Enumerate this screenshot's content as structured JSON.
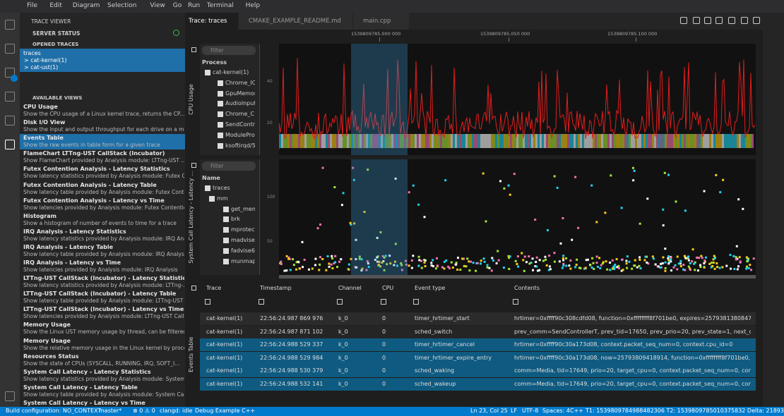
{
  "menu": [
    "File",
    "Edit",
    "Diagram",
    "Selection",
    "View",
    "Go",
    "Run",
    "Terminal",
    "Help"
  ],
  "sidebar": {
    "title": "TRACE VIEWER",
    "server_status": "SERVER STATUS",
    "opened_traces": "OPENED TRACES",
    "traces": [
      "traces",
      "> cat-kernel(1)",
      "> cat-ust(1)"
    ],
    "available_views": "AVAILABLE VIEWS",
    "views": [
      {
        "name": "CPU Usage",
        "desc": "Show the CPU usage of a Linux kernel trace, returns the CP..."
      },
      {
        "name": "Disk I/O View",
        "desc": "Show the input and output throughput for each drive on a m..."
      },
      {
        "name": "Events Table",
        "desc": "Show the raw events in table form for a given trace"
      },
      {
        "name": "FlameChart LTTng-UST CallStack (Incubator)",
        "desc": "Show FlameChart provided by Analysis module: LTTng-UST ..."
      },
      {
        "name": "Futex Contention Analysis - Latency Statistics",
        "desc": "Show latency statistics provided by Analysis module: Futex C..."
      },
      {
        "name": "Futex Contention Analysis - Latency Table",
        "desc": "Show latency table provided by Analysis module: Futex Conte..."
      },
      {
        "name": "Futex Contention Analysis - Latency vs Time",
        "desc": "Show latencies provided by Analysis module: Futex Contentio..."
      },
      {
        "name": "Histogram",
        "desc": "Show a histogram of number of events to time for a trace"
      },
      {
        "name": "IRQ Analysis - Latency Statistics",
        "desc": "Show latency statistics provided by Analysis module: IRQ Ana..."
      },
      {
        "name": "IRQ Analysis - Latency Table",
        "desc": "Show latency table provided by Analysis module: IRQ Analysis"
      },
      {
        "name": "IRQ Analysis - Latency vs Time",
        "desc": "Show latencies provided by Analysis module: IRQ Analysis"
      },
      {
        "name": "LTTng-UST CallStack (Incubator) - Latency Statistics",
        "desc": "Show latency statistics provided by Analysis module: LTTng-..."
      },
      {
        "name": "LTTng-UST CallStack (Incubator) - Latency Table",
        "desc": "Show latency table provided by Analysis module: LTTng-UST ..."
      },
      {
        "name": "LTTng-UST CallStack (Incubator) - Latency vs Time",
        "desc": "Show latencies provided by Analysis module: LTTng-UST Call..."
      },
      {
        "name": "Memory Usage",
        "desc": "Show the Linux UST memory usage by thread, can be filtered..."
      },
      {
        "name": "Memory Usage",
        "desc": "Show the relative memory usage in the Linux kernel by proce..."
      },
      {
        "name": "Resources Status",
        "desc": "Show the state of CPUs (SYSCALL, RUNNING, IRQ, SOFT_I..."
      },
      {
        "name": "System Call Latency - Latency Statistics",
        "desc": "Show latency statistics provided by Analysis module: System C..."
      },
      {
        "name": "System Call Latency - Latency Table",
        "desc": "Show latency table provided by Analysis module: System Call..."
      },
      {
        "name": "System Call Latency - Latency vs Time"
      }
    ]
  },
  "tabs": [
    "Trace: traces",
    "CMAKE_EXAMPLE_README.md",
    "main.cpp"
  ],
  "time_ticks": [
    "1539809785.000 000",
    "1539809785.050 000",
    "1539809785.100 000"
  ],
  "cpu_panel": {
    "title": "CPU Usage",
    "filter": "Filter",
    "header": "Process",
    "yticks": [
      "40",
      "20"
    ],
    "rows": [
      "cat-kernel(1)",
      "Chrome_IO",
      "GpuMemor",
      "AudioInput",
      "Chrome_C",
      "SendContr",
      "ModulePro",
      "ksoftirqd/5"
    ]
  },
  "latency_panel": {
    "title": "System Call Latency - Latency ...",
    "filter": "Filter",
    "header": "Name",
    "yticks": [
      "100",
      "50"
    ],
    "rows": [
      "traces",
      "mm",
      "get_mem",
      "brk",
      "mprotect",
      "madvise",
      "fadvise64",
      "munmap"
    ]
  },
  "events": {
    "title": "Events Table",
    "columns": [
      "Trace",
      "Timestamp",
      "Channel",
      "CPU",
      "Event type",
      "Contents"
    ],
    "rows": [
      [
        "cat-kernel(1)",
        "22:56:24.987 869 976",
        "k_0",
        "0",
        "timer_hrtimer_start",
        "hrtimer=0xffff90c308cdfd08, function=0xffffffff8f701be0, expires=25793813808474, softex"
      ],
      [
        "cat-kernel(1)",
        "22:56:24.987 871 102",
        "k_0",
        "0",
        "sched_switch",
        "prev_comm=SendControllerT, prev_tid=17650, prev_prio=20, prev_state=1, next_comm="
      ],
      [
        "cat-kernel(1)",
        "22:56:24.988 529 337",
        "k_0",
        "0",
        "timer_hrtimer_cancel",
        "hrtimer=0xffff90c30a173d08, context.packet_seq_num=0, context.cpu_id=0"
      ],
      [
        "cat-kernel(1)",
        "22:56:24.988 529 984",
        "k_0",
        "0",
        "timer_hrtimer_expire_entry",
        "hrtimer=0xffff90c30a173d08, now=25793809418914, function=0xffffffff8f701be0, context.p"
      ],
      [
        "cat-kernel(1)",
        "22:56:24.988 530 379",
        "k_0",
        "0",
        "sched_waking",
        "comm=Media, tid=17649, prio=20, target_cpu=0, context.packet_seq_num=0, context.cpu"
      ],
      [
        "cat-kernel(1)",
        "22:56:24.988 532 141",
        "k_0",
        "0",
        "sched_wakeup",
        "comm=Media, tid=17649, prio=20, target_cpu=0, context.packet_seq_num=0, context.cpu"
      ]
    ]
  },
  "status": {
    "left": [
      "Build configuration: NO_CONTEXT",
      "master*",
      "⊗ 0 ⚠ 0",
      "clangd: idle",
      "Debug Example C++"
    ],
    "right": [
      "Ln 23, Col 25",
      "LF",
      "UTF-8",
      "Spaces: 4",
      "C++",
      "T1: 1539809784988482306 T2: 1539809785010375832 Delta: 21893526"
    ]
  }
}
